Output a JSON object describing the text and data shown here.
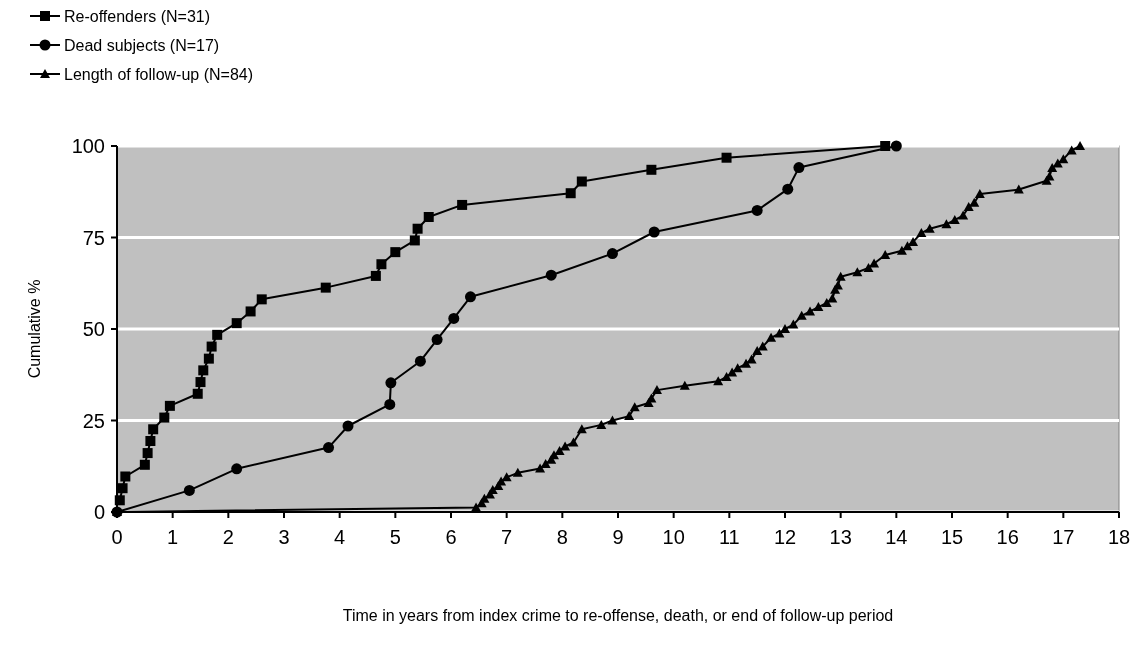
{
  "chart_data": {
    "type": "line",
    "xlabel": "Time in years from index crime to re-offense, death, or end of follow-up period",
    "ylabel": "Cumulative %",
    "xlim": [
      0,
      18
    ],
    "xticks": [
      0,
      1,
      2,
      3,
      4,
      5,
      6,
      7,
      8,
      9,
      10,
      11,
      12,
      13,
      14,
      15,
      16,
      17,
      18
    ],
    "ylim": [
      0,
      100
    ],
    "yticks": [
      0,
      25,
      50,
      75,
      100
    ],
    "grid": "y",
    "legend": "top left",
    "line_style": "solid",
    "series": [
      {
        "name": "Re-offenders (N=31)",
        "color": "#000000",
        "marker": "square",
        "x": [
          0.05,
          0.1,
          0.15,
          0.5,
          0.55,
          0.6,
          0.65,
          0.85,
          0.95,
          1.45,
          1.5,
          1.55,
          1.65,
          1.7,
          1.8,
          2.15,
          2.4,
          2.6,
          3.75,
          4.65,
          4.75,
          5.0,
          5.35,
          5.4,
          5.6,
          6.2,
          8.15,
          8.35,
          9.6,
          10.95,
          13.8
        ],
        "values": [
          3.2,
          6.5,
          9.7,
          12.9,
          16.1,
          19.4,
          22.6,
          25.8,
          29.0,
          32.3,
          35.5,
          38.7,
          41.9,
          45.2,
          48.4,
          51.6,
          54.8,
          58.1,
          61.3,
          64.5,
          67.7,
          71.0,
          74.2,
          77.4,
          80.6,
          83.9,
          87.1,
          90.3,
          93.5,
          96.8,
          100
        ]
      },
      {
        "name": "Dead subjects (N=17)",
        "color": "#000000",
        "marker": "circle",
        "x": [
          0,
          1.3,
          2.15,
          3.8,
          4.15,
          4.9,
          4.92,
          5.45,
          5.75,
          6.05,
          6.35,
          7.8,
          8.9,
          9.65,
          11.5,
          12.05,
          12.25,
          14.0
        ],
        "values": [
          0,
          5.9,
          11.8,
          17.6,
          23.5,
          29.4,
          35.3,
          41.2,
          47.1,
          52.9,
          58.8,
          64.7,
          70.6,
          76.5,
          82.4,
          88.2,
          94.1,
          100
        ]
      },
      {
        "name": "Length of follow-up (N=84)",
        "color": "#000000",
        "marker": "triangle",
        "x": [
          0,
          6.45,
          6.55,
          6.6,
          6.7,
          6.75,
          6.85,
          6.9,
          7.0,
          7.2,
          7.6,
          7.7,
          7.8,
          7.85,
          7.95,
          8.05,
          8.2,
          8.35,
          8.7,
          8.9,
          9.2,
          9.3,
          9.55,
          9.6,
          9.7,
          10.2,
          10.8,
          10.95,
          11.05,
          11.15,
          11.3,
          11.4,
          11.5,
          11.6,
          11.75,
          11.9,
          12.0,
          12.15,
          12.3,
          12.45,
          12.6,
          12.75,
          12.85,
          12.9,
          12.95,
          13.0,
          13.3,
          13.5,
          13.6,
          13.8,
          14.1,
          14.2,
          14.3,
          14.45,
          14.6,
          14.9,
          15.05,
          15.2,
          15.3,
          15.4,
          15.5,
          16.2,
          16.7,
          16.75,
          16.8,
          16.9,
          17.0,
          17.15,
          17.3
        ],
        "values": [
          0,
          1.2,
          2.4,
          3.6,
          4.8,
          6.0,
          7.1,
          8.3,
          9.5,
          10.7,
          11.9,
          13.1,
          14.3,
          15.5,
          16.7,
          17.9,
          19.0,
          22.6,
          23.8,
          25.0,
          26.2,
          28.6,
          29.8,
          31.0,
          33.3,
          34.5,
          35.7,
          36.9,
          38.1,
          39.3,
          40.5,
          41.7,
          44.0,
          45.2,
          47.6,
          48.8,
          50.0,
          51.2,
          53.6,
          54.8,
          56.0,
          57.1,
          58.3,
          60.7,
          61.9,
          64.3,
          65.5,
          66.7,
          67.9,
          70.2,
          71.4,
          72.6,
          73.8,
          76.2,
          77.4,
          78.6,
          79.8,
          81.0,
          83.3,
          84.5,
          86.9,
          88.1,
          90.5,
          91.7,
          94.0,
          95.2,
          96.4,
          98.8,
          100
        ]
      }
    ]
  }
}
